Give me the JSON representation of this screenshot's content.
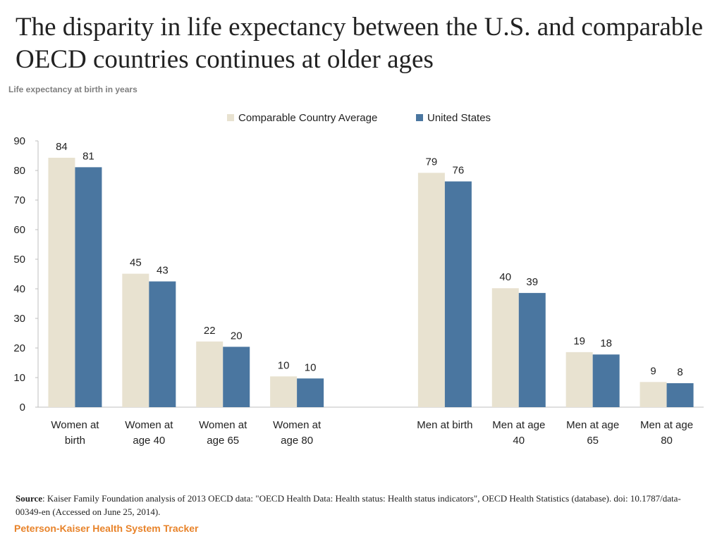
{
  "title": "The disparity in life expectancy between the U.S. and comparable OECD countries continues at older ages",
  "subtitle": "Life expectancy at birth in years",
  "source": {
    "label": "Source",
    "text": ": Kaiser Family Foundation analysis of 2013 OECD data: \"OECD Health Data: Health status: Health status indicators\", OECD Health Statistics (database).  doi: 10.1787/data-00349-en (Accessed on June 25, 2014)."
  },
  "brand": "Peterson-Kaiser Health System Tracker",
  "colors": {
    "comparable": "#e8e2d0",
    "united_states": "#4a76a0",
    "brand": "#e8832a"
  },
  "chart_data": {
    "type": "bar",
    "title": "The disparity in life expectancy between the U.S. and comparable OECD countries continues at older ages",
    "subtitle": "Life expectancy at birth in years",
    "xlabel": "",
    "ylabel": "",
    "ylim": [
      0,
      90
    ],
    "yticks": [
      0,
      10,
      20,
      30,
      40,
      50,
      60,
      70,
      80,
      90
    ],
    "legend_position": "top-center",
    "grid": false,
    "categories": [
      [
        "Women at",
        "birth"
      ],
      [
        "Women at",
        "age 40"
      ],
      [
        "Women at",
        "age 65"
      ],
      [
        "Women at",
        "age 80"
      ],
      [
        ""
      ],
      [
        "Men at birth"
      ],
      [
        "Men at age",
        "40"
      ],
      [
        "Men at age",
        "65"
      ],
      [
        "Men at age",
        "80"
      ]
    ],
    "series": [
      {
        "name": "Comparable Country Average",
        "color": "#e8e2d0",
        "values": [
          84.3,
          45.1,
          22.2,
          10.4,
          null,
          79.2,
          40.2,
          18.6,
          8.5
        ],
        "labels": [
          "84",
          "45",
          "22",
          "10",
          "",
          "79",
          "40",
          "19",
          "9"
        ]
      },
      {
        "name": "United States",
        "color": "#4a76a0",
        "values": [
          81.1,
          42.5,
          20.4,
          9.7,
          null,
          76.3,
          38.6,
          17.8,
          8.1
        ],
        "labels": [
          "81",
          "43",
          "20",
          "10",
          "",
          "76",
          "39",
          "18",
          "8"
        ]
      }
    ]
  }
}
